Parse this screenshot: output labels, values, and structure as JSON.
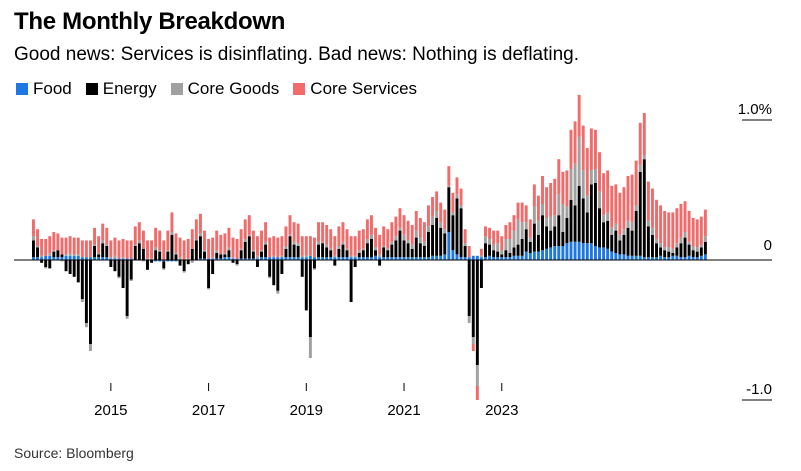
{
  "title": "The Monthly Breakdown",
  "subtitle": "Good news: Services is disinflating. Bad news: Nothing is deflating.",
  "source": "Source: Bloomberg",
  "colors": {
    "food": "#1f77e4",
    "energy": "#000000",
    "core_goods": "#a0a0a0",
    "core_services": "#f26b6b"
  },
  "chart_data": {
    "type": "bar",
    "stacked": true,
    "x_start": "2013-06",
    "x_end": "2023-11",
    "xticks": [
      "2015",
      "2017",
      "2019",
      "2021",
      "2023"
    ],
    "yticks": [
      {
        "value": 1.0,
        "label": "1.0%"
      },
      {
        "value": 0,
        "label": "0"
      },
      {
        "value": -1.0,
        "label": "-1.0"
      }
    ],
    "ylim": [
      -0.95,
      1.15
    ],
    "legend": [
      "Food",
      "Energy",
      "Core Goods",
      "Core Services"
    ],
    "series": [
      {
        "name": "Food",
        "color": "#1f77e4",
        "values": [
          0.02,
          0.02,
          0.02,
          0.03,
          0.03,
          0.02,
          0.02,
          0.02,
          0.03,
          0.03,
          0.03,
          0.03,
          0.02,
          0.02,
          0.02,
          0.02,
          0.02,
          0.02,
          0.02,
          0.01,
          0.01,
          0.01,
          0.01,
          0.01,
          0.01,
          0.0,
          0.0,
          0.0,
          0.0,
          0.0,
          -0.01,
          -0.01,
          -0.01,
          -0.01,
          -0.01,
          -0.01,
          0.0,
          0.0,
          0.0,
          0.0,
          0.0,
          0.01,
          0.01,
          0.01,
          0.01,
          0.01,
          0.01,
          0.02,
          0.02,
          0.01,
          0.01,
          0.01,
          0.01,
          0.01,
          0.01,
          0.01,
          0.02,
          0.02,
          0.02,
          0.02,
          0.02,
          0.02,
          0.02,
          0.02,
          0.02,
          0.02,
          0.02,
          0.02,
          0.03,
          0.02,
          0.02,
          0.02,
          0.02,
          0.02,
          0.02,
          0.02,
          0.02,
          0.02,
          0.02,
          0.02,
          0.02,
          0.02,
          0.02,
          0.02,
          0.03,
          0.02,
          0.02,
          0.02,
          0.02,
          0.02,
          0.02,
          0.02,
          0.02,
          0.02,
          0.02,
          0.02,
          0.02,
          0.02,
          0.03,
          0.03,
          0.03,
          0.04,
          0.2,
          0.07,
          0.04,
          0.02,
          0.02,
          0.02,
          0.03,
          0.03,
          0.02,
          0.02,
          0.03,
          0.02,
          0.02,
          0.02,
          0.02,
          0.02,
          0.03,
          0.03,
          0.03,
          0.06,
          0.05,
          0.06,
          0.06,
          0.07,
          0.08,
          0.09,
          0.1,
          0.1,
          0.1,
          0.12,
          0.13,
          0.13,
          0.13,
          0.12,
          0.12,
          0.12,
          0.1,
          0.09,
          0.09,
          0.08,
          0.06,
          0.05,
          0.04,
          0.04,
          0.03,
          0.03,
          0.03,
          0.03,
          0.02,
          0.02,
          0.02,
          0.02,
          0.03,
          0.02,
          0.02,
          0.03,
          0.03,
          0.02,
          0.02,
          0.03,
          0.02,
          0.02,
          0.03,
          0.04
        ]
      },
      {
        "name": "Energy",
        "color": "#000000",
        "values": [
          0.12,
          0.07,
          -0.02,
          -0.05,
          -0.06,
          0.04,
          0.05,
          0.02,
          -0.08,
          -0.1,
          -0.12,
          -0.16,
          -0.28,
          -0.45,
          -0.6,
          0.08,
          0.02,
          0.1,
          0.08,
          -0.05,
          -0.08,
          -0.12,
          -0.2,
          -0.4,
          -0.14,
          0.1,
          0.12,
          0.08,
          -0.07,
          -0.02,
          0.07,
          0.06,
          -0.05,
          0.06,
          0.18,
          0.04,
          -0.04,
          -0.08,
          -0.03,
          0.08,
          0.14,
          0.16,
          0.05,
          -0.2,
          -0.1,
          0.04,
          0.03,
          0.02,
          0.05,
          -0.02,
          -0.03,
          0.06,
          0.12,
          0.16,
          0.05,
          -0.05,
          0.04,
          0.09,
          -0.12,
          -0.18,
          -0.22,
          -0.1,
          0.06,
          0.15,
          0.09,
          0.08,
          -0.12,
          -0.36,
          -0.55,
          -0.06,
          0.09,
          0.1,
          0.07,
          0.05,
          -0.04,
          0.06,
          0.09,
          0.05,
          -0.3,
          -0.05,
          0.03,
          0.05,
          0.1,
          0.13,
          0.04,
          -0.04,
          0.07,
          0.05,
          0.09,
          0.12,
          0.19,
          0.12,
          0.1,
          0.06,
          0.14,
          0.1,
          0.08,
          0.18,
          0.22,
          0.27,
          0.2,
          0.15,
          0.32,
          0.25,
          0.4,
          0.35,
          0.08,
          -0.4,
          -0.55,
          -0.75,
          -0.2,
          0.1,
          0.08,
          0.05,
          0.04,
          0.02,
          0.05,
          0.03,
          0.06,
          0.08,
          0.12,
          0.16,
          0.08,
          0.2,
          0.12,
          0.25,
          0.16,
          0.12,
          0.14,
          0.22,
          0.1,
          0.18,
          0.3,
          0.26,
          0.4,
          0.32,
          0.22,
          0.42,
          0.45,
          0.28,
          0.18,
          0.2,
          0.12,
          0.16,
          0.1,
          0.14,
          0.2,
          0.18,
          0.32,
          0.6,
          0.7,
          0.22,
          0.16,
          0.1,
          0.06,
          0.05,
          0.04,
          0.02,
          0.06,
          0.1,
          0.14,
          0.08,
          0.05,
          0.04,
          0.06,
          0.09,
          0.18,
          0.1,
          0.06
        ]
      },
      {
        "name": "Core Goods",
        "color": "#a0a0a0",
        "values": [
          0.03,
          0.01,
          0.01,
          -0.01,
          0.02,
          0.01,
          0.0,
          -0.01,
          0.01,
          0.02,
          0.01,
          0.01,
          -0.02,
          -0.03,
          -0.05,
          0.01,
          0.01,
          0.02,
          0.01,
          0.01,
          0.02,
          -0.01,
          0.01,
          -0.02,
          -0.01,
          0.01,
          0.02,
          -0.01,
          0.01,
          0.01,
          0.02,
          0.01,
          -0.01,
          0.01,
          0.02,
          0.01,
          0.02,
          -0.01,
          0.01,
          -0.02,
          0.01,
          0.02,
          0.01,
          -0.01,
          0.01,
          0.02,
          0.0,
          0.01,
          0.02,
          0.01,
          -0.01,
          0.01,
          0.02,
          0.01,
          0.01,
          0.02,
          0.01,
          0.02,
          -0.01,
          0.01,
          -0.02,
          0.01,
          0.02,
          0.01,
          0.02,
          0.02,
          0.01,
          0.01,
          -0.15,
          -0.01,
          0.02,
          0.01,
          0.02,
          0.01,
          0.01,
          0.02,
          0.02,
          0.01,
          0.01,
          0.01,
          0.02,
          0.01,
          0.03,
          0.03,
          0.02,
          0.02,
          0.01,
          0.01,
          0.02,
          0.03,
          0.02,
          0.04,
          0.02,
          0.03,
          0.05,
          0.04,
          0.03,
          0.04,
          0.06,
          0.05,
          0.04,
          0.03,
          0.01,
          0.02,
          0.03,
          0.02,
          0.02,
          -0.05,
          -0.05,
          -0.15,
          0.01,
          0.05,
          0.04,
          0.04,
          0.06,
          0.03,
          0.08,
          0.1,
          0.12,
          0.18,
          0.12,
          0.05,
          0.03,
          0.12,
          0.1,
          0.08,
          0.06,
          0.1,
          0.08,
          0.15,
          0.2,
          0.08,
          0.22,
          0.3,
          0.35,
          0.2,
          0.12,
          0.1,
          0.1,
          0.12,
          0.05,
          0.06,
          0.05,
          0.05,
          0.04,
          0.04,
          0.05,
          0.06,
          0.04,
          0.05,
          0.03,
          0.04,
          0.05,
          0.03,
          0.03,
          0.02,
          0.03,
          0.03,
          0.03,
          0.04,
          0.04,
          0.02,
          0.03,
          0.03,
          0.02,
          0.04,
          0.02,
          0.03,
          0.03,
          0.02
        ]
      },
      {
        "name": "Core Services",
        "color": "#f26b6b",
        "values": [
          0.12,
          0.12,
          0.12,
          0.12,
          0.12,
          0.13,
          0.12,
          0.12,
          0.12,
          0.12,
          0.12,
          0.12,
          0.12,
          0.12,
          0.12,
          0.12,
          0.12,
          0.12,
          0.12,
          0.12,
          0.13,
          0.13,
          0.13,
          0.13,
          0.13,
          0.13,
          0.13,
          0.13,
          0.13,
          0.13,
          0.14,
          0.14,
          0.14,
          0.14,
          0.14,
          0.14,
          0.14,
          0.14,
          0.14,
          0.14,
          0.14,
          0.14,
          0.14,
          0.14,
          0.14,
          0.14,
          0.14,
          0.14,
          0.14,
          0.14,
          0.14,
          0.14,
          0.14,
          0.14,
          0.14,
          0.14,
          0.14,
          0.14,
          0.14,
          0.14,
          0.14,
          0.14,
          0.14,
          0.14,
          0.14,
          0.14,
          0.14,
          0.14,
          0.14,
          0.14,
          0.14,
          0.14,
          0.14,
          0.14,
          0.14,
          0.14,
          0.14,
          0.14,
          0.14,
          0.14,
          0.14,
          0.14,
          0.14,
          0.14,
          0.14,
          0.14,
          0.14,
          0.14,
          0.14,
          0.14,
          0.14,
          0.14,
          0.14,
          0.14,
          0.14,
          0.14,
          0.14,
          0.15,
          0.14,
          0.14,
          0.14,
          0.14,
          0.14,
          0.14,
          0.12,
          0.12,
          0.1,
          0.08,
          -0.05,
          -0.1,
          0.05,
          0.07,
          0.08,
          0.1,
          0.09,
          0.1,
          0.1,
          0.12,
          0.11,
          0.12,
          0.14,
          0.12,
          0.13,
          0.16,
          0.18,
          0.2,
          0.22,
          0.24,
          0.26,
          0.25,
          0.23,
          0.26,
          0.28,
          0.3,
          0.3,
          0.32,
          0.34,
          0.3,
          0.28,
          0.28,
          0.3,
          0.3,
          0.3,
          0.28,
          0.3,
          0.3,
          0.32,
          0.34,
          0.32,
          0.3,
          0.3,
          0.28,
          0.28,
          0.28,
          0.27,
          0.26,
          0.25,
          0.26,
          0.25,
          0.24,
          0.22,
          0.22,
          0.2,
          0.2,
          0.2,
          0.19,
          0.18,
          0.18
        ]
      }
    ]
  }
}
